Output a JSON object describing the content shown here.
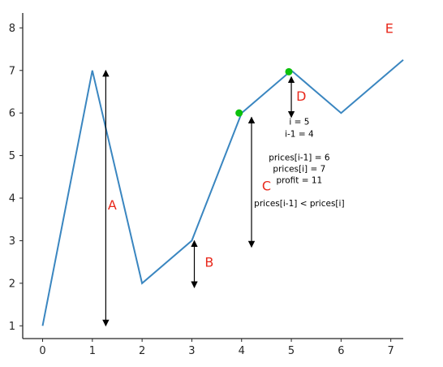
{
  "chart_data": {
    "type": "line",
    "title": "",
    "xlabel": "",
    "ylabel": "",
    "xlim": [
      -0.4,
      7.25
    ],
    "ylim": [
      0.7,
      8.35
    ],
    "x_ticks": [
      0,
      1,
      2,
      3,
      4,
      5,
      6,
      7
    ],
    "y_ticks": [
      1,
      2,
      3,
      4,
      5,
      6,
      7,
      8
    ],
    "grid": false,
    "colors": {
      "line": "#3a86c0",
      "highlight": "#0cc10c",
      "annotation": "#e8291c",
      "axis": "#262626"
    },
    "series": [
      {
        "x": [
          0,
          1,
          2,
          3,
          4,
          5,
          6,
          7.25
        ],
        "y": [
          1,
          7,
          2,
          3,
          6,
          7,
          6,
          7.25
        ]
      }
    ],
    "highlight_points": [
      {
        "x": 3.95,
        "y": 6
      },
      {
        "x": 4.95,
        "y": 6.97
      }
    ],
    "arrows": [
      {
        "label": "A",
        "x": 1.27,
        "y_from": 1,
        "y_to": 7,
        "label_x": 1.4,
        "label_y": 3.85
      },
      {
        "label": "B",
        "x": 3.05,
        "y_from": 1.9,
        "y_to": 3,
        "label_x": 3.35,
        "label_y": 2.5
      },
      {
        "label": "C",
        "x": 4.2,
        "y_from": 2.85,
        "y_to": 5.9,
        "label_x": 4.5,
        "label_y": 4.3
      },
      {
        "label": "D",
        "x": 5.0,
        "y_from": 5.9,
        "y_to": 6.85,
        "label_x": 5.2,
        "label_y": 6.4
      }
    ],
    "corner_label": {
      "text": "E",
      "x": 6.97,
      "y": 8.0
    },
    "annotations": [
      {
        "text": "i = 5",
        "x": 5.16,
        "y": 5.8
      },
      {
        "text": "i-1 = 4",
        "x": 5.16,
        "y": 5.52
      },
      {
        "text": "prices[i-1] = 6",
        "x": 5.16,
        "y": 4.96
      },
      {
        "text": "prices[i] = 7",
        "x": 5.16,
        "y": 4.7
      },
      {
        "text": "profit = 11",
        "x": 5.16,
        "y": 4.43
      },
      {
        "text": "prices[i-1] < prices[i]",
        "x": 5.16,
        "y": 3.89
      }
    ]
  }
}
